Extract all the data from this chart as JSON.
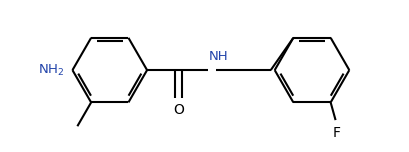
{
  "background_color": "#ffffff",
  "line_color": "#000000",
  "nh_color": "#2244aa",
  "nh2_color": "#2244aa",
  "line_width": 1.5,
  "font_size": 9.5,
  "figsize": [
    4.1,
    1.52
  ],
  "dpi": 100,
  "xlim": [
    0,
    4.1
  ],
  "ylim": [
    0,
    1.52
  ]
}
